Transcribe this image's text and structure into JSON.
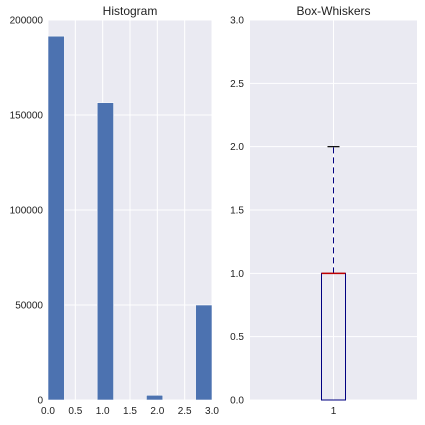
{
  "chart_data": [
    {
      "type": "bar",
      "title": "Histogram",
      "xlabel": "",
      "ylabel": "",
      "xlim": [
        0.0,
        3.0
      ],
      "ylim": [
        0,
        200000
      ],
      "grid": true,
      "bar_color": "#4c72b0",
      "x_ticks": [
        "0.0",
        "0.5",
        "1.0",
        "1.5",
        "2.0",
        "2.5",
        "3.0"
      ],
      "y_ticks": [
        "0",
        "50000",
        "100000",
        "150000",
        "200000"
      ],
      "bins": [
        {
          "x0": 0.0,
          "x1": 0.3,
          "value": 191500
        },
        {
          "x0": 0.3,
          "x1": 0.6,
          "value": 0
        },
        {
          "x0": 0.6,
          "x1": 0.9,
          "value": 0
        },
        {
          "x0": 0.9,
          "x1": 1.2,
          "value": 156500
        },
        {
          "x0": 1.2,
          "x1": 1.5,
          "value": 0
        },
        {
          "x0": 1.5,
          "x1": 1.8,
          "value": 0
        },
        {
          "x0": 1.8,
          "x1": 2.1,
          "value": 2500
        },
        {
          "x0": 2.1,
          "x1": 2.4,
          "value": 0
        },
        {
          "x0": 2.4,
          "x1": 2.7,
          "value": 0
        },
        {
          "x0": 2.7,
          "x1": 3.0,
          "value": 50000
        }
      ]
    },
    {
      "type": "box",
      "title": "Box-Whiskers",
      "xlabel": "",
      "ylabel": "",
      "ylim": [
        0.0,
        3.0
      ],
      "grid": true,
      "x_ticks": [
        "1"
      ],
      "y_ticks": [
        "0.0",
        "0.5",
        "1.0",
        "1.5",
        "2.0",
        "2.5",
        "3.0"
      ],
      "box": {
        "min": 0.0,
        "q1": 0.0,
        "median": 1.0,
        "q3": 1.0,
        "max": 2.0
      },
      "box_color": "#000080",
      "median_color": "#c00000",
      "whisker_color": "#000080",
      "cap_color": "#000000"
    }
  ]
}
